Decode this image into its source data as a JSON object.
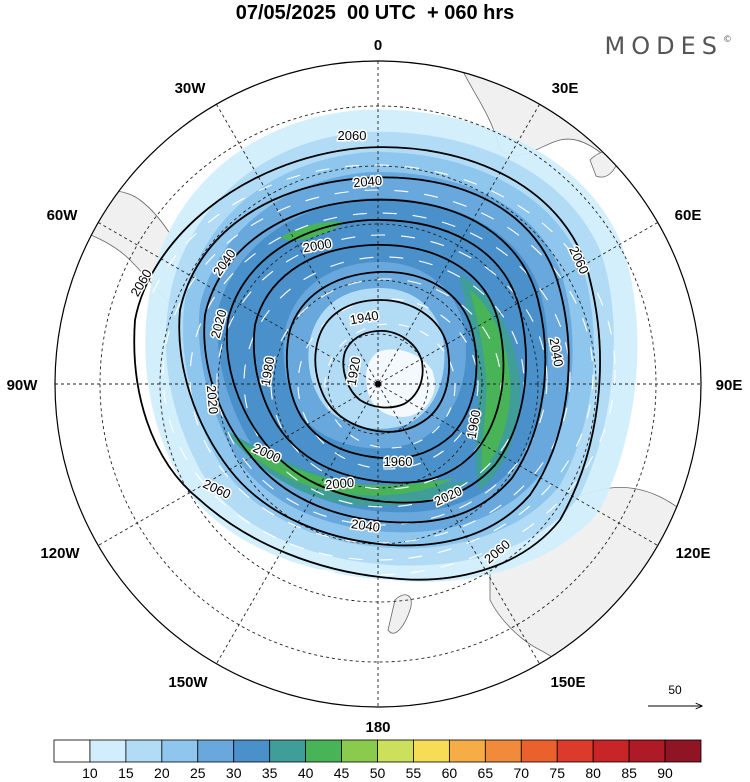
{
  "header": {
    "title": "07/05/2025  00 UTC  + 060 hrs",
    "brand": "MODES",
    "brand_mark": "©"
  },
  "map": {
    "projection": "south-polar-stereographic",
    "meridian_labels": [
      {
        "text": "0",
        "lon": 0
      },
      {
        "text": "30E",
        "lon": 30
      },
      {
        "text": "60E",
        "lon": 60
      },
      {
        "text": "90E",
        "lon": 90
      },
      {
        "text": "120E",
        "lon": 120
      },
      {
        "text": "150E",
        "lon": 150
      },
      {
        "text": "180",
        "lon": 180
      },
      {
        "text": "150W",
        "lon": -150
      },
      {
        "text": "120W",
        "lon": -120
      },
      {
        "text": "90W",
        "lon": -90
      },
      {
        "text": "60W",
        "lon": -60
      },
      {
        "text": "30W",
        "lon": -30
      }
    ],
    "contour_labels": [
      "2060",
      "2040",
      "2020",
      "2000",
      "1980",
      "1960",
      "1940",
      "1920"
    ],
    "reference_vector": "50"
  },
  "colorbar": {
    "ticks": [
      "10",
      "15",
      "20",
      "25",
      "30",
      "35",
      "40",
      "45",
      "50",
      "55",
      "60",
      "65",
      "70",
      "75",
      "80",
      "85",
      "90"
    ],
    "colors": [
      "#ffffff",
      "#d2eefc",
      "#b2dcf6",
      "#8ec6ee",
      "#68a8dc",
      "#4a90ca",
      "#3f9e98",
      "#48b457",
      "#8acb4d",
      "#cde05b",
      "#f7dc55",
      "#f6ad46",
      "#f18a3a",
      "#ea612d",
      "#dc3a2a",
      "#c82528",
      "#ae1b26",
      "#8f1424"
    ]
  }
}
